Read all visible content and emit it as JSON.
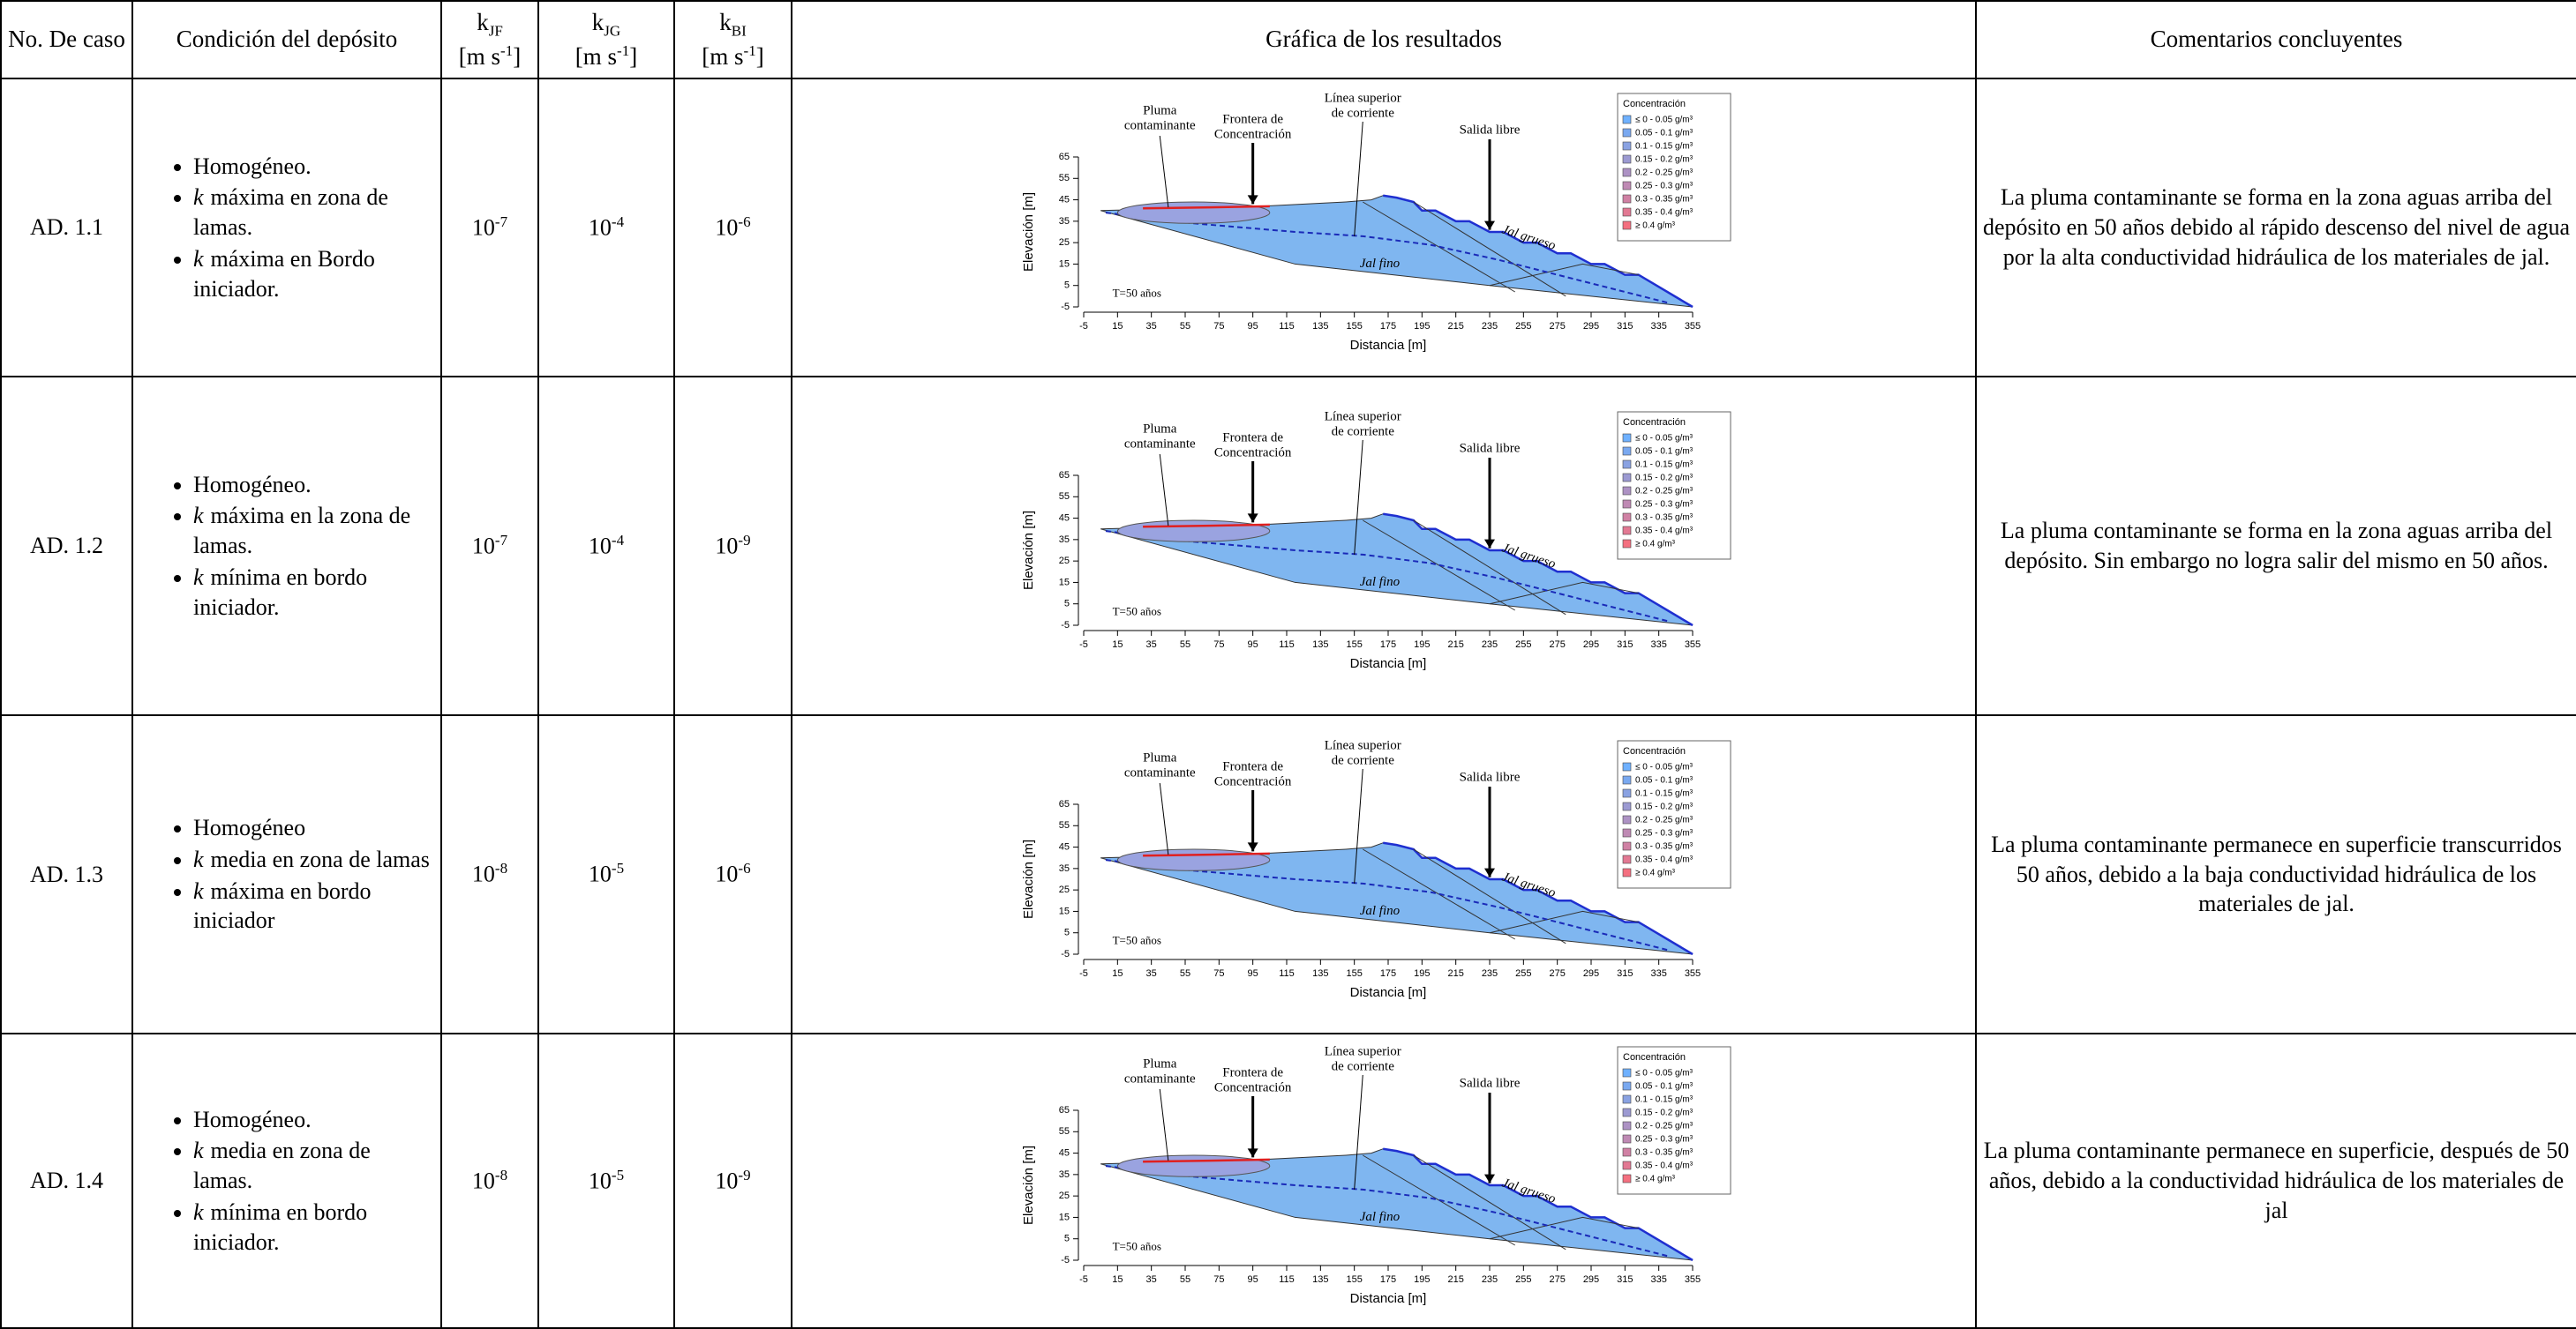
{
  "header": {
    "case": "No. De caso",
    "condition": "Condición del depósito",
    "k_jf": {
      "symbol": "k",
      "sub": "JF",
      "unit": "[m s",
      "exp": "-1",
      "close": "]"
    },
    "k_jg": {
      "symbol": "k",
      "sub": "JG",
      "unit": "[m s",
      "exp": "-1",
      "close": "]"
    },
    "k_bi": {
      "symbol": "k",
      "sub": "BI",
      "unit": "[m s",
      "exp": "-1",
      "close": "]"
    },
    "graph": "Gráfica de los resultados",
    "comments": "Comentarios concluyentes"
  },
  "rows": [
    {
      "case": "AD. 1.1",
      "condition": [
        "Homogéneo.",
        {
          "em": "k",
          "text": "máxima en zona de lamas."
        },
        {
          "em": "k",
          "text": "máxima en Bordo iniciador."
        }
      ],
      "k_jf": {
        "base": "10",
        "exp": "-7"
      },
      "k_jg": {
        "base": "10",
        "exp": "-4"
      },
      "k_bi": {
        "base": "10",
        "exp": "-6"
      },
      "graph": {
        "xlabel": "Distancia [m]",
        "ylabel": "Elevación [m]",
        "xlim": [
          -5,
          355
        ],
        "ylim": [
          -5,
          65
        ],
        "xticks": [
          -5,
          15,
          35,
          55,
          75,
          95,
          115,
          135,
          155,
          175,
          195,
          215,
          235,
          255,
          275,
          295,
          315,
          335,
          355
        ],
        "yticks": [
          -5,
          5,
          15,
          25,
          35,
          45,
          55,
          65
        ],
        "time": "T=50 años",
        "plume": [
          "Pluma",
          "contaminante"
        ],
        "front": [
          "Frontera de",
          "Concentración"
        ],
        "flow": [
          "Línea superior",
          "de corriente"
        ],
        "outlet": "Salida libre",
        "coarse": "Jal grueso",
        "fine": "Jal fino",
        "legend_title": "Concentración",
        "legend": [
          "≤ 0 - 0.05 g/m³",
          "0.05 - 0.1 g/m³",
          "0.1 - 0.15 g/m³",
          "0.15 - 0.2 g/m³",
          "0.2 - 0.25 g/m³",
          "0.25 - 0.3 g/m³",
          "0.3 - 0.35 g/m³",
          "0.35 - 0.4 g/m³",
          "≥ 0.4 g/m³"
        ]
      },
      "comments": "La pluma contaminante se forma en la zona aguas arriba del depósito en 50 años debido al rápido descenso del nivel de agua por la alta conductividad hidráulica de los materiales de jal."
    },
    {
      "case": "AD. 1.2",
      "condition": [
        "Homogéneo.",
        {
          "em": "k",
          "text": "máxima en la zona de lamas."
        },
        {
          "em": "k",
          "text": "mínima en bordo iniciador."
        }
      ],
      "k_jf": {
        "base": "10",
        "exp": "-7"
      },
      "k_jg": {
        "base": "10",
        "exp": "-4"
      },
      "k_bi": {
        "base": "10",
        "exp": "-9"
      },
      "graph": {
        "xlabel": "Distancia [m]",
        "ylabel": "Elevación [m]",
        "xlim": [
          -5,
          355
        ],
        "ylim": [
          -5,
          65
        ],
        "xticks": [
          -5,
          15,
          35,
          55,
          75,
          95,
          115,
          135,
          155,
          175,
          195,
          215,
          235,
          255,
          275,
          295,
          315,
          335,
          355
        ],
        "yticks": [
          -5,
          5,
          15,
          25,
          35,
          45,
          55,
          65
        ],
        "time": "T=50 años",
        "plume": [
          "Pluma",
          "contaminante"
        ],
        "front": [
          "Frontera de",
          "Concentración"
        ],
        "flow": [
          "Línea superior",
          "de corriente"
        ],
        "outlet": "Salida libre",
        "coarse": "Jal grueso",
        "fine": "Jal fino",
        "legend_title": "Concentración",
        "legend": [
          "≤ 0 - 0.05 g/m³",
          "0.05 - 0.1 g/m³",
          "0.1 - 0.15 g/m³",
          "0.15 - 0.2 g/m³",
          "0.2 - 0.25 g/m³",
          "0.25 - 0.3 g/m³",
          "0.3 - 0.35 g/m³",
          "0.35 - 0.4 g/m³",
          "≥ 0.4 g/m³"
        ]
      },
      "comments": "La pluma contaminante se forma en la zona aguas arriba del depósito. Sin embargo no logra salir del mismo en 50 años."
    },
    {
      "case": "AD. 1.3",
      "condition": [
        "Homogéneo",
        {
          "em": "k",
          "text": "media en zona de lamas"
        },
        {
          "em": "k",
          "text": "máxima en bordo iniciador"
        }
      ],
      "k_jf": {
        "base": "10",
        "exp": "-8"
      },
      "k_jg": {
        "base": "10",
        "exp": "-5"
      },
      "k_bi": {
        "base": "10",
        "exp": "-6"
      },
      "graph": {
        "xlabel": "Distancia [m]",
        "ylabel": "Elevación [m]",
        "xlim": [
          -5,
          355
        ],
        "ylim": [
          -5,
          65
        ],
        "xticks": [
          -5,
          15,
          35,
          55,
          75,
          95,
          115,
          135,
          155,
          175,
          195,
          215,
          235,
          255,
          275,
          295,
          315,
          335,
          355
        ],
        "yticks": [
          -5,
          5,
          15,
          25,
          35,
          45,
          55,
          65
        ],
        "time": "T=50 años",
        "plume": [
          "Pluma",
          "contaminante"
        ],
        "front": [
          "Frontera de",
          "Concentración"
        ],
        "flow": [
          "Línea superior",
          "de corriente"
        ],
        "outlet": "Salida libre",
        "coarse": "Jal grueso",
        "fine": "Jal fino",
        "legend_title": "Concentración",
        "legend": [
          "≤ 0 - 0.05 g/m³",
          "0.05 - 0.1 g/m³",
          "0.1 - 0.15 g/m³",
          "0.15 - 0.2 g/m³",
          "0.2 - 0.25 g/m³",
          "0.25 - 0.3 g/m³",
          "0.3 - 0.35 g/m³",
          "0.35 - 0.4 g/m³",
          "≥ 0.4 g/m³"
        ]
      },
      "comments": "La pluma contaminante permanece en superficie transcurridos 50 años, debido a la baja conductividad hidráulica de los materiales de jal."
    },
    {
      "case": "AD. 1.4",
      "condition": [
        "Homogéneo.",
        {
          "em": "k",
          "text": "media en zona de lamas."
        },
        {
          "em": "k",
          "text": "mínima en bordo iniciador."
        }
      ],
      "k_jf": {
        "base": "10",
        "exp": "-8"
      },
      "k_jg": {
        "base": "10",
        "exp": "-5"
      },
      "k_bi": {
        "base": "10",
        "exp": "-9"
      },
      "graph": {
        "xlabel": "Distancia [m]",
        "ylabel": "Elevación [m]",
        "xlim": [
          -5,
          355
        ],
        "ylim": [
          -5,
          65
        ],
        "xticks": [
          -5,
          15,
          35,
          55,
          75,
          95,
          115,
          135,
          155,
          175,
          195,
          215,
          235,
          255,
          275,
          295,
          315,
          335,
          355
        ],
        "yticks": [
          -5,
          5,
          15,
          25,
          35,
          45,
          55,
          65
        ],
        "time": "T=50 años",
        "plume": [
          "Pluma",
          "contaminante"
        ],
        "front": [
          "Frontera de",
          "Concentración"
        ],
        "flow": [
          "Línea superior",
          "de corriente"
        ],
        "outlet": "Salida libre",
        "coarse": "Jal grueso",
        "fine": "Jal fino",
        "legend_title": "Concentración",
        "legend": [
          "≤ 0 - 0.05 g/m³",
          "0.05 - 0.1 g/m³",
          "0.1 - 0.15 g/m³",
          "0.15 - 0.2 g/m³",
          "0.2 - 0.25 g/m³",
          "0.25 - 0.3 g/m³",
          "0.3 - 0.35 g/m³",
          "0.35 - 0.4 g/m³",
          "≥ 0.4 g/m³"
        ]
      },
      "comments": "La pluma contaminante permanece en superficie, después de 50 años, debido a la conductividad hidráulica de los materiales de jal"
    }
  ]
}
